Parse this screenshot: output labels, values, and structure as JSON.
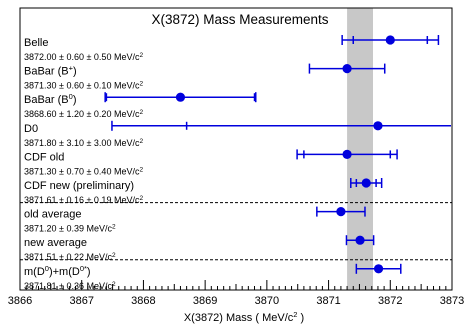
{
  "chart_data": {
    "type": "scatter",
    "title": "X(3872) Mass Measurements",
    "xlabel": "X(3872) Mass",
    "xunit": "MeV/c",
    "xunit_sup": "2",
    "xlim": [
      3866,
      3873
    ],
    "ticks": [
      "3866",
      "3867",
      "3868",
      "3869",
      "3870",
      "3871",
      "3872",
      "3873"
    ],
    "band": {
      "from": 3871.3,
      "to": 3871.72,
      "color": "#c8c8c8"
    },
    "marker_color": "#0000dd",
    "title_color": "#ff0000",
    "measurements": [
      {
        "name": "Belle",
        "sup": "",
        "value_text": "3872.00 ± 0.60 ± 0.50 MeV/c",
        "value_sup": "2",
        "x": 3872.0,
        "stat": 0.6,
        "total": 0.78
      },
      {
        "name": "BaBar (B",
        "sup": "+",
        "suffix": ")",
        "value_text": "3871.30 ± 0.60 ± 0.10 MeV/c",
        "value_sup": "2",
        "x": 3871.3,
        "stat": 0.6,
        "total": 0.61
      },
      {
        "name": "BaBar (B",
        "sup": "0",
        "suffix": ")",
        "value_text": "3868.60 ± 1.20 ± 0.20 MeV/c",
        "value_sup": "2",
        "x": 3868.6,
        "stat": 1.2,
        "total": 1.22
      },
      {
        "name": "D0",
        "sup": "",
        "value_text": "3871.80 ± 3.10 ± 3.00 MeV/c",
        "value_sup": "2",
        "x": 3871.8,
        "stat": 3.1,
        "total": 4.31
      },
      {
        "name": "CDF old",
        "sup": "",
        "value_text": "3871.30 ± 0.70 ± 0.40 MeV/c",
        "value_sup": "2",
        "x": 3871.3,
        "stat": 0.7,
        "total": 0.81
      },
      {
        "name": "CDF new (preliminary)",
        "sup": "",
        "value_text": "3871.61 ± 0.16 ± 0.19 MeV/c",
        "value_sup": "2",
        "x": 3871.61,
        "stat": 0.16,
        "total": 0.25
      },
      {
        "name": "old average",
        "sup": "",
        "value_text": "3871.20 ± 0.39 MeV/c",
        "value_sup": "2",
        "x": 3871.2,
        "stat": 0.39,
        "total": 0.39
      },
      {
        "name": "new average",
        "sup": "",
        "value_text": "3871.51 ± 0.22 MeV/c",
        "value_sup": "2",
        "x": 3871.51,
        "stat": 0.22,
        "total": 0.22
      },
      {
        "name": "m(D",
        "sup": "0",
        "mid": ")+m(D",
        "sup2": "0*",
        "suffix": ")",
        "value_text": "3871.81 ± 0.36 MeV/c",
        "value_sup": "2",
        "x": 3871.81,
        "stat": 0.36,
        "total": 0.36
      }
    ],
    "separators_after": [
      5,
      7
    ]
  }
}
